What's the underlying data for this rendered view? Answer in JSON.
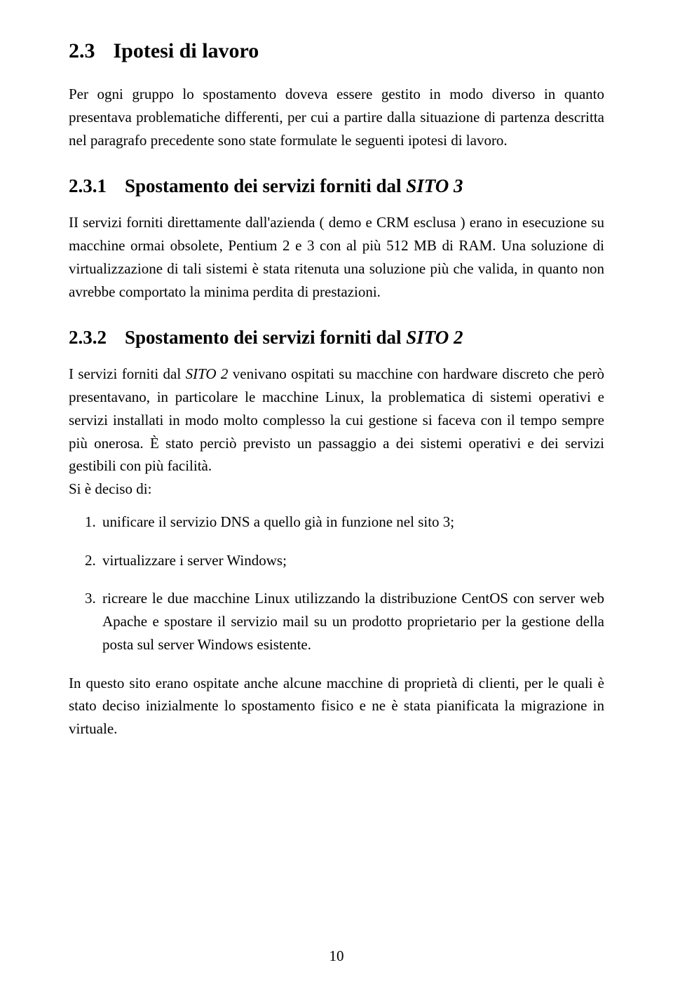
{
  "section": {
    "number": "2.3",
    "title": "Ipotesi di lavoro",
    "intro": "Per ogni gruppo lo spostamento doveva essere gestito in modo diverso in quanto presentava problematiche differenti, per cui a partire dalla situazione di partenza descritta nel paragrafo precedente sono state formulate le seguenti ipotesi di lavoro."
  },
  "sub1": {
    "number": "2.3.1",
    "title_prefix": "Spostamento dei servizi forniti dal ",
    "title_em": "SITO 3",
    "para": "II servizi forniti direttamente dall'azienda ( demo e CRM esclusa ) erano in esecuzione su macchine ormai obsolete, Pentium 2 e 3 con al più 512 MB di RAM. Una soluzione di virtualizzazione di tali sistemi è stata ritenuta una soluzione più che valida, in quanto non avrebbe comportato la minima perdita di prestazioni."
  },
  "sub2": {
    "number": "2.3.2",
    "title_prefix": "Spostamento dei servizi forniti dal ",
    "title_em": "SITO 2",
    "para_a": "I servizi forniti dal ",
    "para_em": "SITO 2",
    "para_b": " venivano ospitati su macchine con hardware discreto che però presentavano, in particolare le macchine Linux, la problematica di sistemi operativi e servizi installati in modo molto complesso la cui gestione si faceva con il tempo sempre più onerosa. È stato perciò previsto un passaggio a dei sistemi operativi e dei servizi gestibili con più facilità.",
    "intro_list": "Si è deciso di:",
    "items": [
      "unificare il servizio DNS a quello già in funzione nel sito 3;",
      "virtualizzare i server Windows;",
      "ricreare le due macchine Linux utilizzando la distribuzione CentOS con server web Apache e spostare il servizio mail su un prodotto proprietario per la gestione della posta sul server Windows esistente."
    ],
    "closing": "In questo sito erano ospitate anche alcune macchine di proprietà di clienti, per le quali è stato deciso inizialmente lo spostamento fisico e ne è stata pianificata la migrazione in virtuale."
  },
  "page_number": "10"
}
